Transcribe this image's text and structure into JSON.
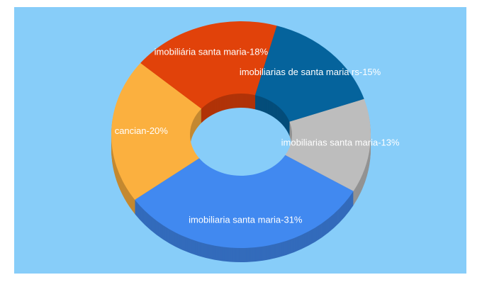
{
  "chart_data": {
    "type": "donut3d",
    "values": [
      15,
      13,
      31,
      20,
      18
    ],
    "value_labels": [
      "imobiliarias de santa maria rs-15%",
      "imobiliarias santa maria-13%",
      "imobiliaria santa maria-31%",
      "cancian-20%",
      "imobiliária santa maria-18%"
    ],
    "colors": [
      "#05639c",
      "#bdbdbd",
      "#4189f0",
      "#fbb03f",
      "#e1420a"
    ]
  }
}
